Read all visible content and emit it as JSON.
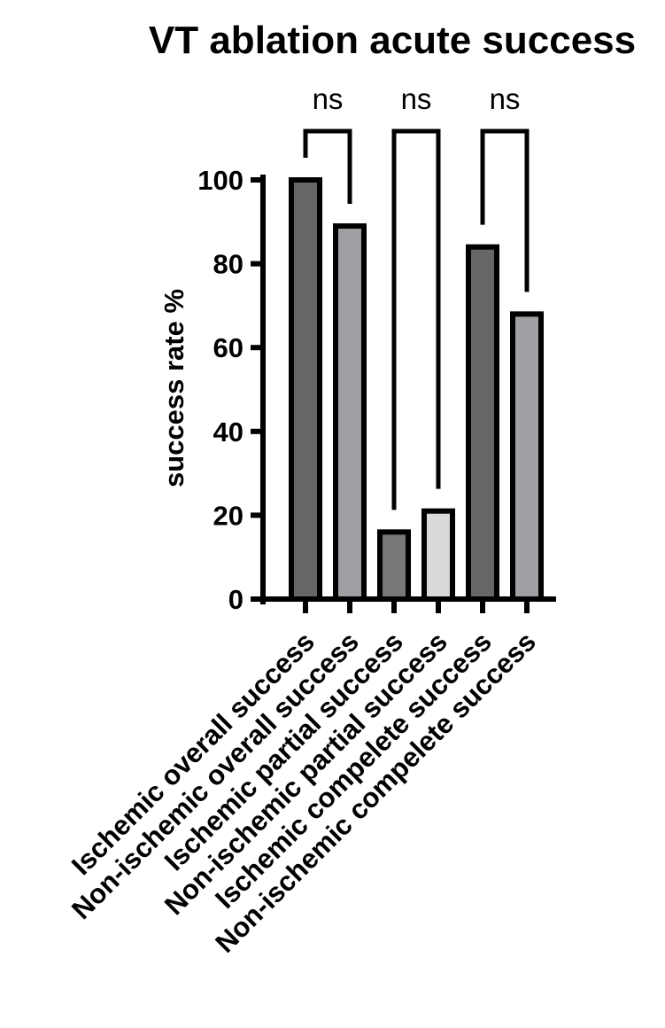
{
  "chart_data": {
    "type": "bar",
    "title": "VT ablation acute success",
    "xlabel": "",
    "ylabel": "success rate %",
    "ylim": [
      0,
      100
    ],
    "yticks": [
      0,
      20,
      40,
      60,
      80,
      100
    ],
    "ytick_labels": [
      "0",
      "20",
      "40",
      "60",
      "80",
      "100"
    ],
    "grid": false,
    "categories": [
      "Ischemic overall success",
      "Non-ischemic overall success",
      "Ischemic partial success",
      "Non-ischemic partial success",
      "Ischemic compelete success",
      "Non-ischemic compelete success"
    ],
    "values": [
      100,
      89,
      16,
      21,
      84,
      68
    ],
    "bar_colors": [
      "#666666",
      "#a0a0a4",
      "#777777",
      "#d9d9d9",
      "#666666",
      "#a0a0a4"
    ],
    "bar_edge_color": "#000000",
    "comparisons": [
      {
        "pair": [
          0,
          1
        ],
        "label": "ns"
      },
      {
        "pair": [
          2,
          3
        ],
        "label": "ns"
      },
      {
        "pair": [
          4,
          5
        ],
        "label": "ns"
      }
    ]
  }
}
